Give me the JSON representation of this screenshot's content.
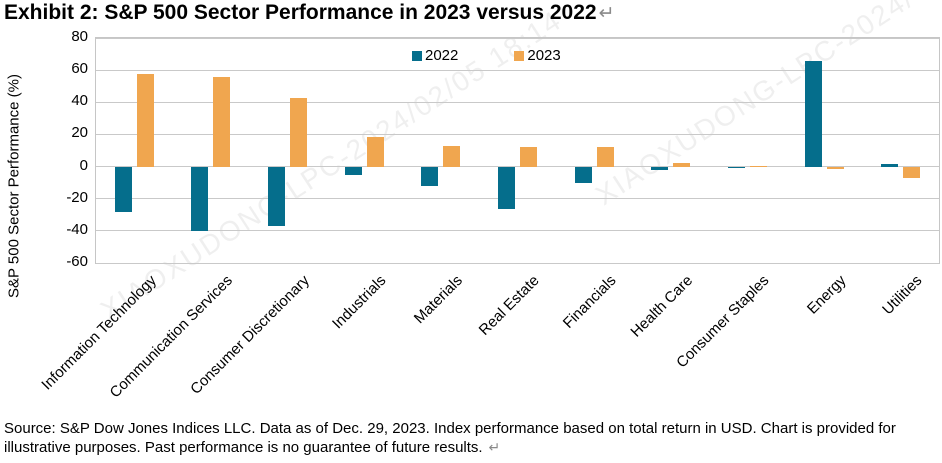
{
  "title": {
    "text": "Exhibit 2: S&P 500 Sector Performance in 2023 versus 2022",
    "return_mark": "↵"
  },
  "chart_data": {
    "type": "bar",
    "title": "Exhibit 2: S&P 500 Sector Performance in 2023 versus 2022",
    "ylabel": "S&P 500 Sector Performance (%)",
    "xlabel": "",
    "ylim": [
      -60,
      80
    ],
    "yticks": [
      80,
      60,
      40,
      20,
      0,
      -20,
      -40,
      -60
    ],
    "grid": true,
    "legend_position": "top-center",
    "categories": [
      "Information Technology",
      "Communication Services",
      "Consumer Discretionary",
      "Industrials",
      "Materials",
      "Real Estate",
      "Financials",
      "Health Care",
      "Consumer Staples",
      "Energy",
      "Utilities"
    ],
    "series": [
      {
        "name": "2022",
        "color": "#056e8c",
        "values": [
          -28.2,
          -39.9,
          -37.0,
          -5.5,
          -12.3,
          -26.1,
          -10.5,
          -2.0,
          -0.6,
          65.7,
          1.6
        ]
      },
      {
        "name": "2023",
        "color": "#f0a64f",
        "values": [
          57.8,
          55.8,
          42.4,
          18.1,
          12.6,
          12.4,
          12.1,
          2.1,
          0.5,
          -1.3,
          -7.1
        ]
      }
    ]
  },
  "colors": {
    "gridline": "#c9c9c9",
    "plot_border": "#c6c6c6",
    "return_mark": "#8a8a8a"
  },
  "watermark": {
    "text": "XIAOXUDONG-LPC-2024/02/05 18:14"
  },
  "source": {
    "text": "Source: S&P Dow Jones Indices LLC. Data as of Dec. 29, 2023. Index performance based on total return in USD. Chart is provided for illustrative purposes. Past performance is no guarantee of future results.",
    "return_mark": "↵"
  }
}
